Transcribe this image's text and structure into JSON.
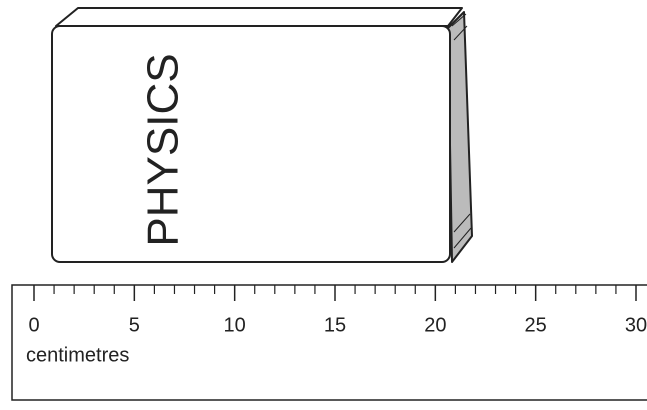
{
  "book": {
    "title": "PHYSICS"
  },
  "ruler": {
    "labels": [
      0,
      5,
      10,
      15,
      20,
      25,
      30
    ],
    "unit": "centimetres"
  }
}
